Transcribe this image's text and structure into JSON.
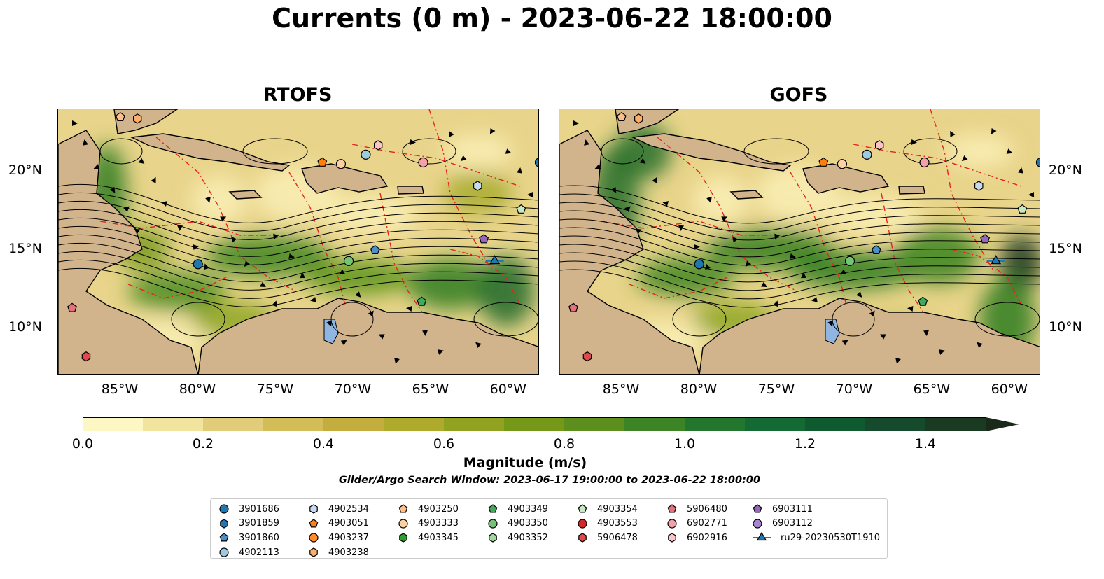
{
  "title": "Currents (0 m) - 2023-06-22 18:00:00",
  "panels": [
    {
      "title": "RTOFS"
    },
    {
      "title": "GOFS"
    }
  ],
  "axes": {
    "lon_labels": [
      "85°W",
      "80°W",
      "75°W",
      "70°W",
      "65°W",
      "60°W"
    ],
    "lon_values": [
      -85,
      -80,
      -75,
      -70,
      -65,
      -60
    ],
    "lat_labels": [
      "20°N",
      "15°N",
      "10°N"
    ],
    "lat_values": [
      20,
      15,
      10
    ],
    "lon_range": [
      -89,
      -58
    ],
    "lat_range": [
      7,
      24
    ]
  },
  "colorbar": {
    "label": "Magnitude (m/s)",
    "ticks": [
      "0.0",
      "0.2",
      "0.4",
      "0.6",
      "0.8",
      "1.0",
      "1.2",
      "1.4"
    ],
    "tick_values": [
      0,
      0.2,
      0.4,
      0.6,
      0.8,
      1.0,
      1.2,
      1.4
    ],
    "range": [
      0,
      1.5
    ],
    "extend": "max",
    "colors": [
      "#fdf7c4",
      "#f1e49e",
      "#e0cc79",
      "#d2bd58",
      "#c3ad3e",
      "#adaa2c",
      "#90a21f",
      "#769818",
      "#5c8f1d",
      "#3d8426",
      "#23762d",
      "#146a33",
      "#0f5a2f",
      "#164a2c",
      "#1a3a22"
    ]
  },
  "search_window": "Glider/Argo Search Window: 2023-06-17 19:00:00 to 2023-06-22 18:00:00",
  "legend": [
    [
      {
        "label": "3901686",
        "shape": "circle",
        "color": "#1f77b4"
      },
      {
        "label": "3901859",
        "shape": "hexagon",
        "color": "#1f77b4"
      },
      {
        "label": "3901860",
        "shape": "pentagon",
        "color": "#4a90c9"
      },
      {
        "label": "4902113",
        "shape": "circle",
        "color": "#9ecae1"
      }
    ],
    [
      {
        "label": "4902534",
        "shape": "hexagon",
        "color": "#c6dbef"
      },
      {
        "label": "4903051",
        "shape": "pentagon",
        "color": "#ff7f0e"
      },
      {
        "label": "4903237",
        "shape": "circle",
        "color": "#ff8c2a"
      },
      {
        "label": "4903238",
        "shape": "hexagon",
        "color": "#fdae6b"
      }
    ],
    [
      {
        "label": "4903250",
        "shape": "pentagon",
        "color": "#fdc08a"
      },
      {
        "label": "4903333",
        "shape": "circle",
        "color": "#fdd0a2"
      },
      {
        "label": "4903345",
        "shape": "hexagon",
        "color": "#2ca02c"
      }
    ],
    [
      {
        "label": "4903349",
        "shape": "pentagon",
        "color": "#41ab5d"
      },
      {
        "label": "4903350",
        "shape": "circle",
        "color": "#74c476"
      },
      {
        "label": "4903352",
        "shape": "hexagon",
        "color": "#a1d99b"
      }
    ],
    [
      {
        "label": "4903354",
        "shape": "pentagon",
        "color": "#c7e9c0"
      },
      {
        "label": "4903553",
        "shape": "circle",
        "color": "#d62728"
      },
      {
        "label": "5906478",
        "shape": "hexagon",
        "color": "#e04a4a"
      }
    ],
    [
      {
        "label": "5906480",
        "shape": "pentagon",
        "color": "#e8707c"
      },
      {
        "label": "6902771",
        "shape": "circle",
        "color": "#f4a0a8"
      },
      {
        "label": "6902916",
        "shape": "hexagon",
        "color": "#fbc5c8"
      }
    ],
    [
      {
        "label": "6903111",
        "shape": "pentagon",
        "color": "#9467bd"
      },
      {
        "label": "6903112",
        "shape": "circle",
        "color": "#a885d0"
      },
      {
        "label": "ru29-20230530T1910",
        "shape": "triangle-line",
        "color": "#1f77b4"
      }
    ]
  ],
  "platforms_rtofs": [
    {
      "id": "3901686",
      "lon": -58.0,
      "lat": 20.6
    },
    {
      "id": "3901860",
      "lon": -68.6,
      "lat": 15.0
    },
    {
      "id": "3901686",
      "lon": -80.0,
      "lat": 14.1
    },
    {
      "id": "4902113",
      "lon": -69.2,
      "lat": 21.1
    },
    {
      "id": "4902534",
      "lon": -62.0,
      "lat": 19.1
    },
    {
      "id": "4903051",
      "lon": -72.0,
      "lat": 20.6
    },
    {
      "id": "4903250",
      "lon": -85.0,
      "lat": 23.5
    },
    {
      "id": "4903238",
      "lon": -83.9,
      "lat": 23.4
    },
    {
      "id": "4903333",
      "lon": -70.8,
      "lat": 20.5
    },
    {
      "id": "4903349",
      "lon": -65.6,
      "lat": 11.7
    },
    {
      "id": "4903350",
      "lon": -70.3,
      "lat": 14.3
    },
    {
      "id": "4903354",
      "lon": -59.2,
      "lat": 17.6
    },
    {
      "id": "5906480",
      "lon": -88.1,
      "lat": 11.3
    },
    {
      "id": "5906478",
      "lon": -87.2,
      "lat": 8.2
    },
    {
      "id": "6902771",
      "lon": -65.5,
      "lat": 20.6
    },
    {
      "id": "6902916",
      "lon": -68.4,
      "lat": 21.7
    },
    {
      "id": "6903111",
      "lon": -61.6,
      "lat": 15.7
    },
    {
      "id": "ru29-20230530T1910",
      "lon": -60.9,
      "lat": 14.3
    }
  ],
  "platforms_gofs": [
    {
      "id": "3901686",
      "lon": -58.0,
      "lat": 20.6
    },
    {
      "id": "3901860",
      "lon": -68.6,
      "lat": 15.0
    },
    {
      "id": "3901686",
      "lon": -80.0,
      "lat": 14.1
    },
    {
      "id": "4902113",
      "lon": -69.2,
      "lat": 21.1
    },
    {
      "id": "4902534",
      "lon": -62.0,
      "lat": 19.1
    },
    {
      "id": "4903051",
      "lon": -72.0,
      "lat": 20.6
    },
    {
      "id": "4903250",
      "lon": -85.0,
      "lat": 23.5
    },
    {
      "id": "4903238",
      "lon": -83.9,
      "lat": 23.4
    },
    {
      "id": "4903333",
      "lon": -70.8,
      "lat": 20.5
    },
    {
      "id": "4903349",
      "lon": -65.6,
      "lat": 11.7
    },
    {
      "id": "4903350",
      "lon": -70.3,
      "lat": 14.3
    },
    {
      "id": "4903354",
      "lon": -59.2,
      "lat": 17.6
    },
    {
      "id": "5906480",
      "lon": -88.1,
      "lat": 11.3
    },
    {
      "id": "5906478",
      "lon": -87.2,
      "lat": 8.2
    },
    {
      "id": "6902771",
      "lon": -65.5,
      "lat": 20.6
    },
    {
      "id": "6902916",
      "lon": -68.4,
      "lat": 21.7
    },
    {
      "id": "6903111",
      "lon": -61.6,
      "lat": 15.7
    },
    {
      "id": "ru29-20230530T1910",
      "lon": -60.9,
      "lat": 14.3
    }
  ]
}
